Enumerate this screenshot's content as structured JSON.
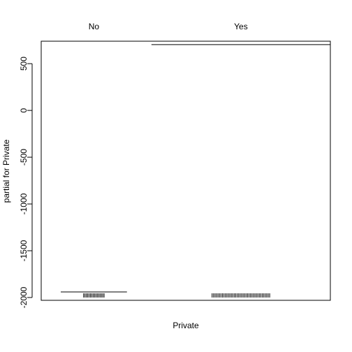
{
  "chart_data": {
    "type": "bar",
    "xlabel": "Private",
    "ylabel": "partial for Private",
    "ylim": [
      -2030,
      740
    ],
    "yticks": [
      -2000,
      -1500,
      -1000,
      -500,
      0,
      500
    ],
    "ytick_labels": [
      "-2000",
      "-1500",
      "-1000",
      "-500",
      "0",
      "500"
    ],
    "categories": [
      "No",
      "Yes"
    ],
    "values": [
      -1940,
      704
    ],
    "category_widths": [
      0.27,
      0.73
    ],
    "rug": {
      "baseline": -2000,
      "top": -1955,
      "groups": [
        {
          "category": "No",
          "count": 16
        },
        {
          "category": "Yes",
          "count": 40
        }
      ]
    }
  }
}
